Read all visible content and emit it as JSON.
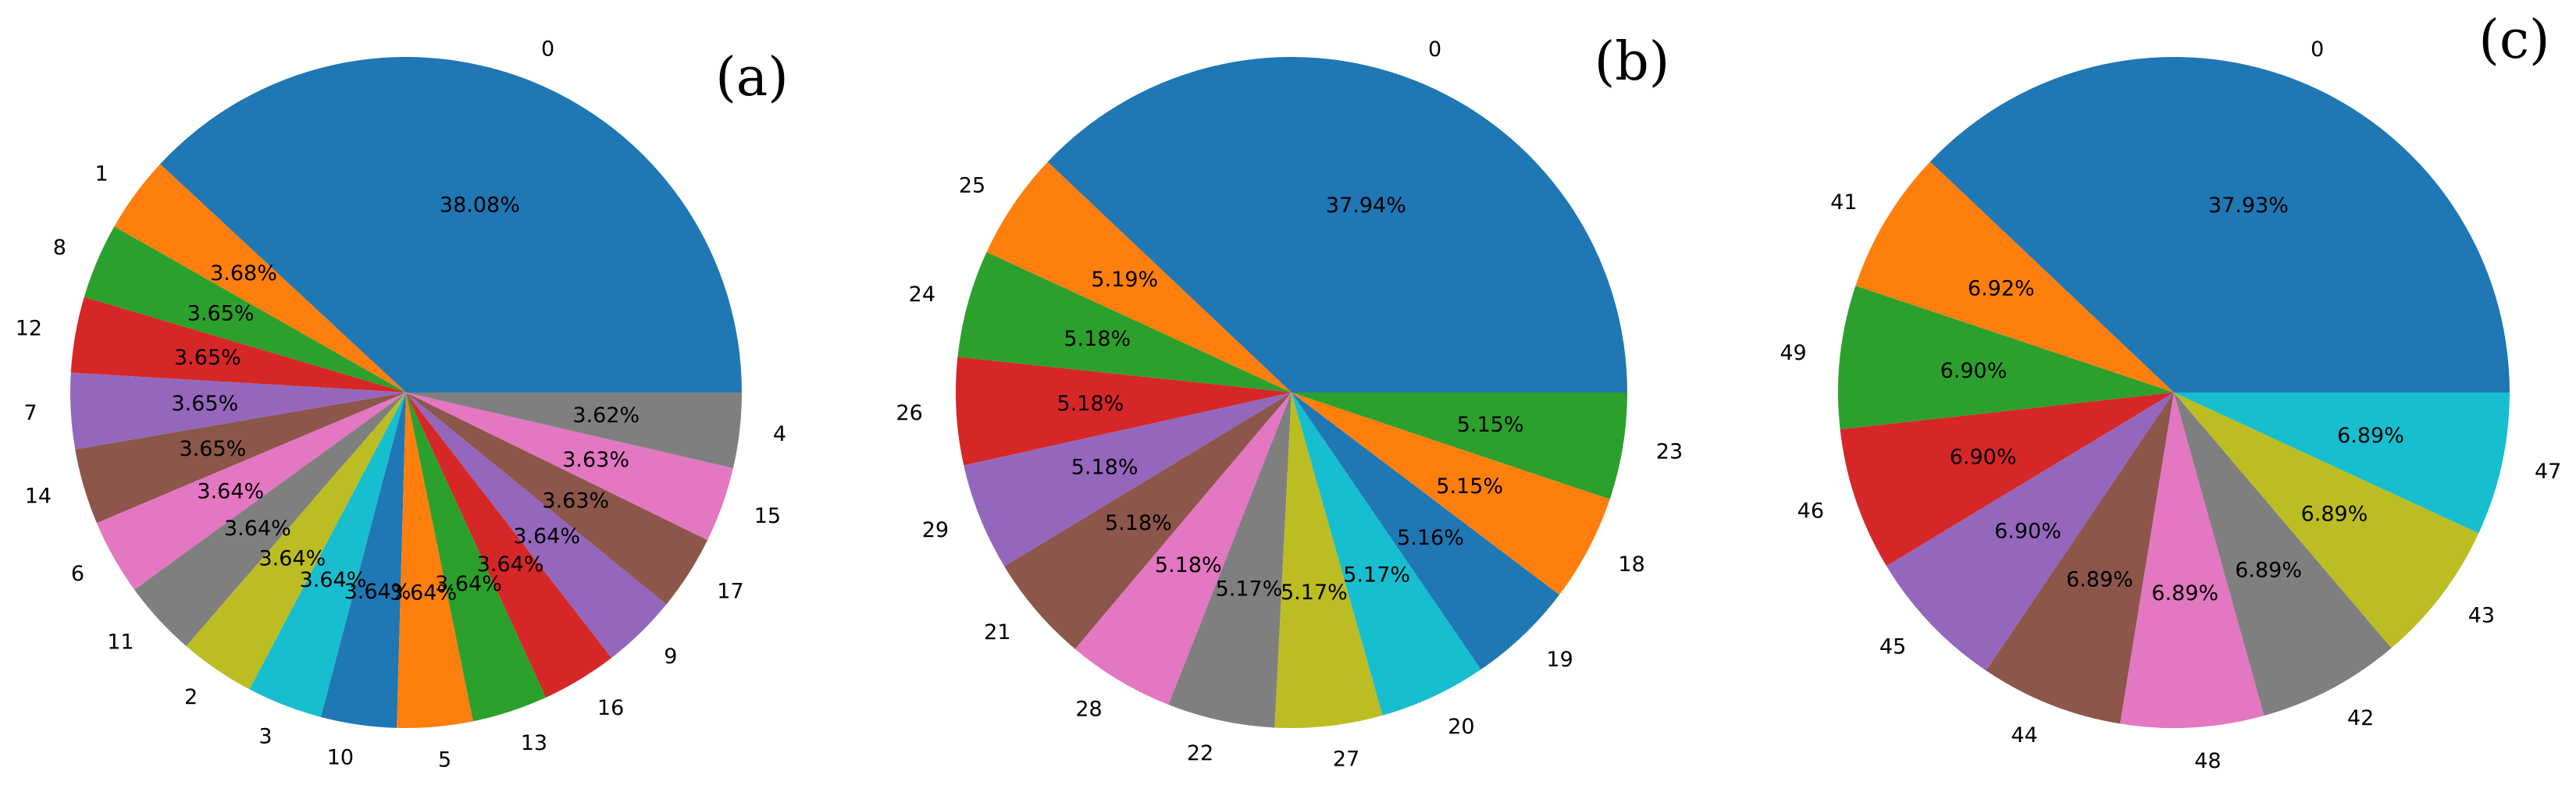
{
  "chart_data": [
    {
      "type": "pie",
      "panel_label": "(a)",
      "start_angle_deg": 0,
      "direction": "counterclockwise",
      "slices": [
        {
          "label": "0",
          "value": 38.08,
          "pct": "38.08%",
          "color": "#1f77b4"
        },
        {
          "label": "1",
          "value": 3.68,
          "pct": "3.68%",
          "color": "#ff7f0e"
        },
        {
          "label": "8",
          "value": 3.65,
          "pct": "3.65%",
          "color": "#2ca02c"
        },
        {
          "label": "12",
          "value": 3.65,
          "pct": "3.65%",
          "color": "#d62728"
        },
        {
          "label": "7",
          "value": 3.65,
          "pct": "3.65%",
          "color": "#9467bd"
        },
        {
          "label": "14",
          "value": 3.65,
          "pct": "3.65%",
          "color": "#8c564b"
        },
        {
          "label": "6",
          "value": 3.64,
          "pct": "3.64%",
          "color": "#e377c2"
        },
        {
          "label": "11",
          "value": 3.64,
          "pct": "3.64%",
          "color": "#7f7f7f"
        },
        {
          "label": "2",
          "value": 3.64,
          "pct": "3.64%",
          "color": "#bcbd22"
        },
        {
          "label": "3",
          "value": 3.64,
          "pct": "3.64%",
          "color": "#17becf"
        },
        {
          "label": "10",
          "value": 3.64,
          "pct": "3.64%",
          "color": "#1f77b4"
        },
        {
          "label": "5",
          "value": 3.64,
          "pct": "3.64%",
          "color": "#ff7f0e"
        },
        {
          "label": "13",
          "value": 3.64,
          "pct": "3.64%",
          "color": "#2ca02c"
        },
        {
          "label": "16",
          "value": 3.64,
          "pct": "3.64%",
          "color": "#d62728"
        },
        {
          "label": "9",
          "value": 3.64,
          "pct": "3.64%",
          "color": "#9467bd"
        },
        {
          "label": "17",
          "value": 3.63,
          "pct": "3.63%",
          "color": "#8c564b"
        },
        {
          "label": "15",
          "value": 3.63,
          "pct": "3.63%",
          "color": "#e377c2"
        },
        {
          "label": "4",
          "value": 3.62,
          "pct": "3.62%",
          "color": "#7f7f7f"
        }
      ]
    },
    {
      "type": "pie",
      "panel_label": "(b)",
      "start_angle_deg": 0,
      "direction": "counterclockwise",
      "slices": [
        {
          "label": "0",
          "value": 37.94,
          "pct": "37.94%",
          "color": "#1f77b4"
        },
        {
          "label": "25",
          "value": 5.19,
          "pct": "5.19%",
          "color": "#ff7f0e"
        },
        {
          "label": "24",
          "value": 5.18,
          "pct": "5.18%",
          "color": "#2ca02c"
        },
        {
          "label": "26",
          "value": 5.18,
          "pct": "5.18%",
          "color": "#d62728"
        },
        {
          "label": "29",
          "value": 5.18,
          "pct": "5.18%",
          "color": "#9467bd"
        },
        {
          "label": "21",
          "value": 5.18,
          "pct": "5.18%",
          "color": "#8c564b"
        },
        {
          "label": "28",
          "value": 5.18,
          "pct": "5.18%",
          "color": "#e377c2"
        },
        {
          "label": "22",
          "value": 5.17,
          "pct": "5.17%",
          "color": "#7f7f7f"
        },
        {
          "label": "27",
          "value": 5.17,
          "pct": "5.17%",
          "color": "#bcbd22"
        },
        {
          "label": "20",
          "value": 5.17,
          "pct": "5.17%",
          "color": "#17becf"
        },
        {
          "label": "19",
          "value": 5.16,
          "pct": "5.16%",
          "color": "#1f77b4"
        },
        {
          "label": "18",
          "value": 5.15,
          "pct": "5.15%",
          "color": "#ff7f0e"
        },
        {
          "label": "23",
          "value": 5.15,
          "pct": "5.15%",
          "color": "#2ca02c"
        }
      ]
    },
    {
      "type": "pie",
      "panel_label": "(c)",
      "start_angle_deg": 0,
      "direction": "counterclockwise",
      "slices": [
        {
          "label": "0",
          "value": 37.93,
          "pct": "37.93%",
          "color": "#1f77b4"
        },
        {
          "label": "41",
          "value": 6.92,
          "pct": "6.92%",
          "color": "#ff7f0e"
        },
        {
          "label": "49",
          "value": 6.9,
          "pct": "6.90%",
          "color": "#2ca02c"
        },
        {
          "label": "46",
          "value": 6.9,
          "pct": "6.90%",
          "color": "#d62728"
        },
        {
          "label": "45",
          "value": 6.9,
          "pct": "6.90%",
          "color": "#9467bd"
        },
        {
          "label": "44",
          "value": 6.89,
          "pct": "6.89%",
          "color": "#8c564b"
        },
        {
          "label": "48",
          "value": 6.89,
          "pct": "6.89%",
          "color": "#e377c2"
        },
        {
          "label": "42",
          "value": 6.89,
          "pct": "6.89%",
          "color": "#7f7f7f"
        },
        {
          "label": "43",
          "value": 6.89,
          "pct": "6.89%",
          "color": "#bcbd22"
        },
        {
          "label": "47",
          "value": 6.89,
          "pct": "6.89%",
          "color": "#17becf"
        }
      ]
    }
  ]
}
